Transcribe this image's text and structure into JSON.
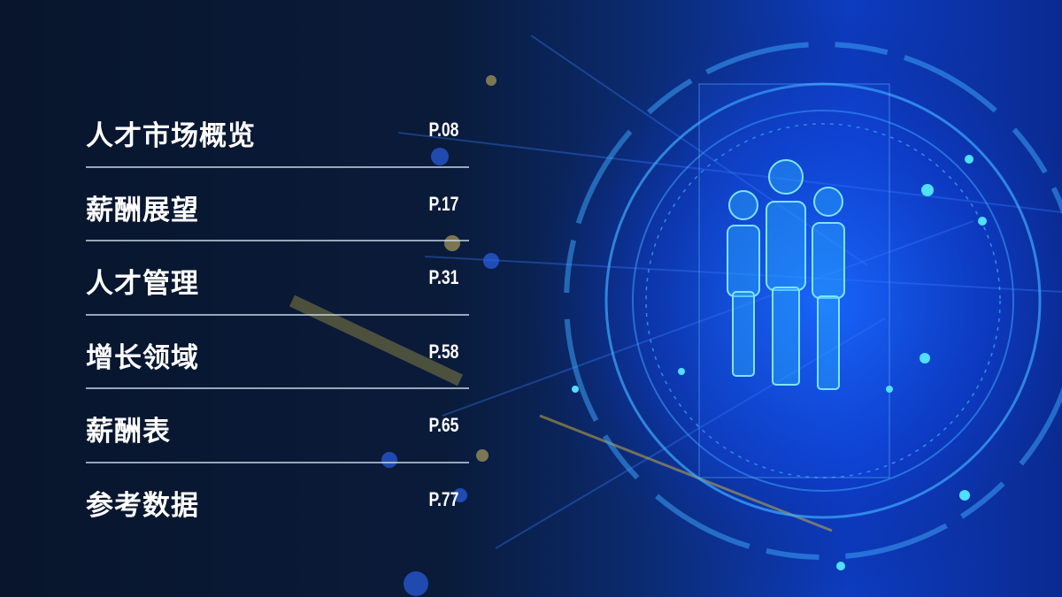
{
  "toc": {
    "items": [
      {
        "title": "人才市场概览",
        "page": "P.08"
      },
      {
        "title": "薪酬展望",
        "page": "P.17"
      },
      {
        "title": "人才管理",
        "page": "P.31"
      },
      {
        "title": "增长领域",
        "page": "P.58"
      },
      {
        "title": "薪酬表",
        "page": "P.65"
      },
      {
        "title": "参考数据",
        "page": "P.77"
      }
    ]
  },
  "colors": {
    "background": "#07142b",
    "accent": "#1f6bff",
    "glow": "#35d4ff",
    "text": "#ffffff"
  },
  "illustration": {
    "icon": "people-group-hologram-icon"
  }
}
